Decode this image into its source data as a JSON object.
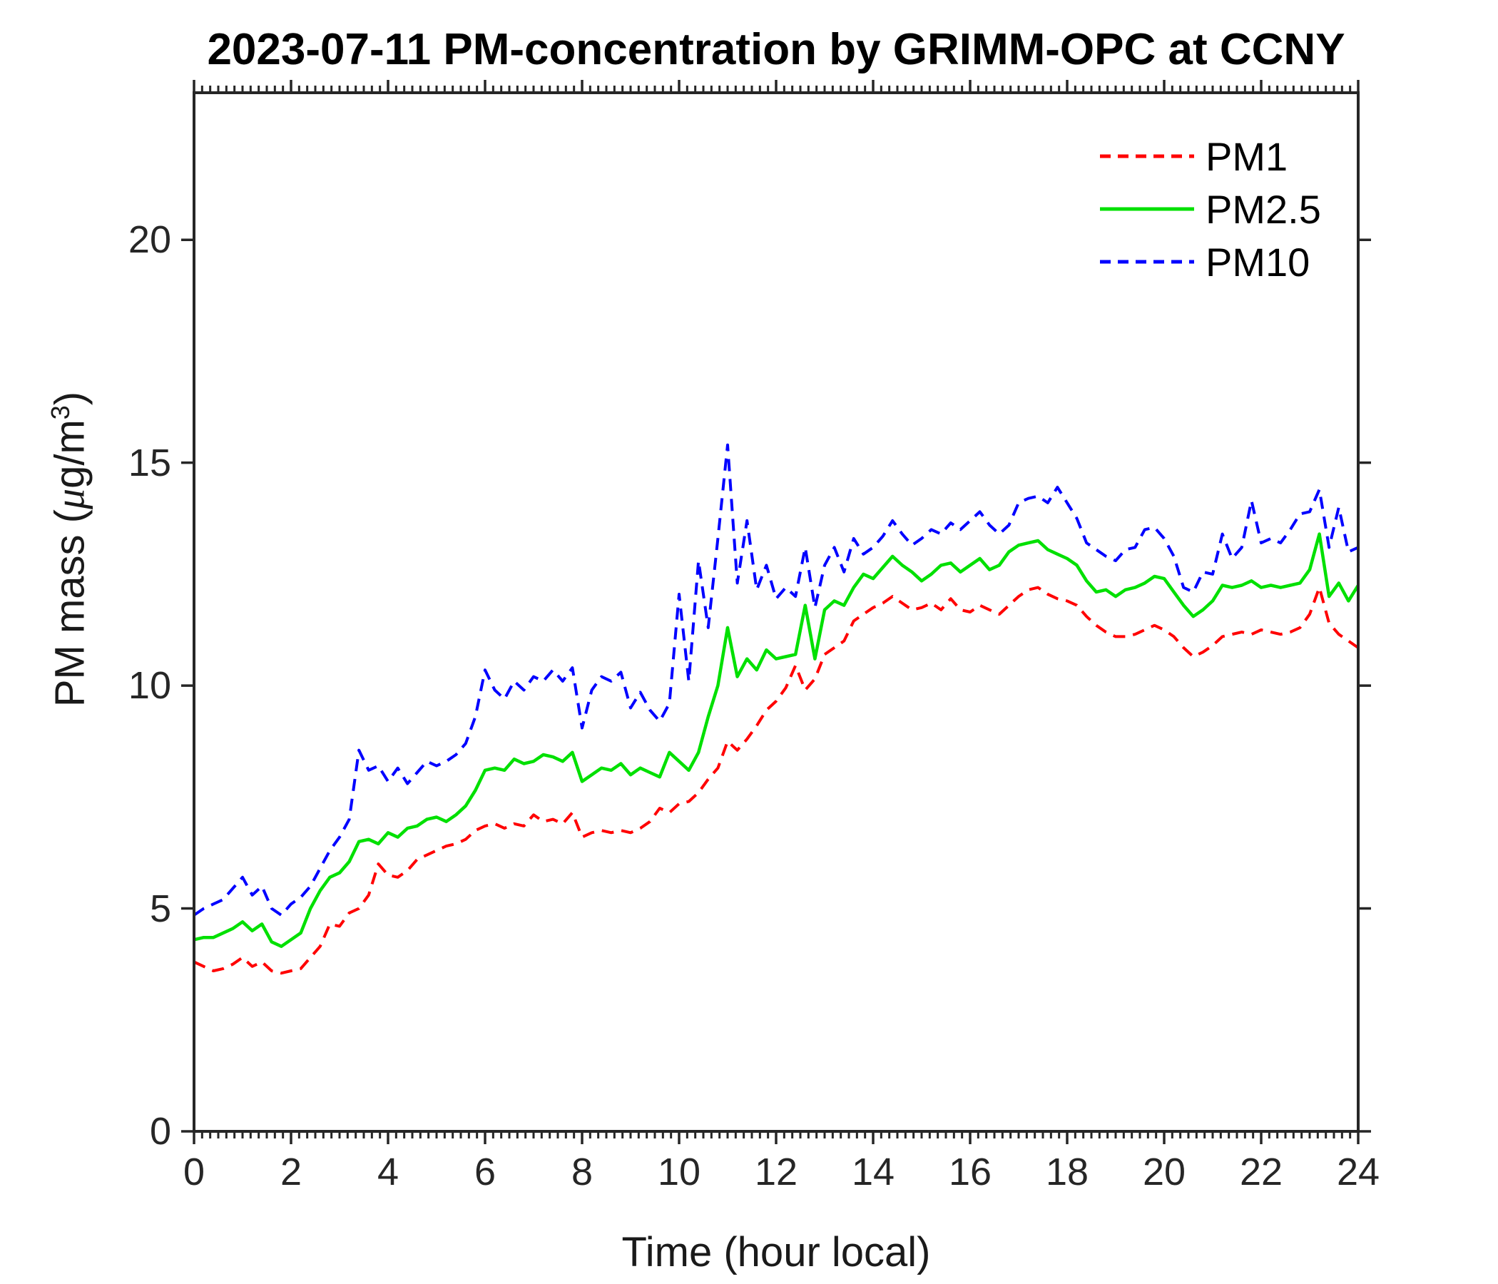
{
  "figure": {
    "background": "#ffffff",
    "axis_color": "#262626",
    "text_color": "#000000"
  },
  "chart_data": {
    "type": "line",
    "title": "2023-07-11 PM-concentration by GRIMM-OPC at CCNY",
    "xlabel": "Time (hour local)",
    "ylabel": "PM mass (μg/m³)",
    "ylabel_parts": {
      "prefix": "PM mass (",
      "mu": "μ",
      "unit": "g/m",
      "exponent": "3",
      "suffix": ")"
    },
    "xlim": [
      0,
      24
    ],
    "ylim": [
      0,
      23.3
    ],
    "xticks": [
      0,
      2,
      4,
      6,
      8,
      10,
      12,
      14,
      16,
      18,
      20,
      22,
      24
    ],
    "yticks": [
      0,
      5,
      10,
      15,
      20
    ],
    "x_minor_ticks_per_major": 12,
    "grid": false,
    "tick_direction": "out",
    "legend_position": "top-right-inside",
    "x_hours": [
      0,
      0.2,
      0.4,
      0.6,
      0.8,
      1,
      1.2,
      1.4,
      1.6,
      1.8,
      2,
      2.2,
      2.4,
      2.6,
      2.8,
      3,
      3.2,
      3.4,
      3.6,
      3.8,
      4,
      4.2,
      4.4,
      4.6,
      4.8,
      5,
      5.2,
      5.4,
      5.6,
      5.8,
      6,
      6.2,
      6.4,
      6.6,
      6.8,
      7,
      7.2,
      7.4,
      7.6,
      7.8,
      8,
      8.2,
      8.4,
      8.6,
      8.8,
      9,
      9.2,
      9.4,
      9.6,
      9.8,
      10,
      10.2,
      10.4,
      10.6,
      10.8,
      11,
      11.2,
      11.4,
      11.6,
      11.8,
      12,
      12.2,
      12.4,
      12.6,
      12.8,
      13,
      13.2,
      13.4,
      13.6,
      13.8,
      14,
      14.2,
      14.4,
      14.6,
      14.8,
      15,
      15.2,
      15.4,
      15.6,
      15.8,
      16,
      16.2,
      16.4,
      16.6,
      16.8,
      17,
      17.2,
      17.4,
      17.6,
      17.8,
      18,
      18.2,
      18.4,
      18.6,
      18.8,
      19,
      19.2,
      19.4,
      19.6,
      19.8,
      20,
      20.2,
      20.4,
      20.6,
      20.8,
      21,
      21.2,
      21.4,
      21.6,
      21.8,
      22,
      22.2,
      22.4,
      22.6,
      22.8,
      23,
      23.2,
      23.4,
      23.6,
      23.8,
      24
    ],
    "series": [
      {
        "name": "PM1",
        "color": "#ff0000",
        "line_style": "dashed",
        "values": [
          3.8,
          3.7,
          3.6,
          3.65,
          3.75,
          3.9,
          3.7,
          3.8,
          3.6,
          3.55,
          3.6,
          3.65,
          3.9,
          4.15,
          4.65,
          4.6,
          4.9,
          5.0,
          5.3,
          6.0,
          5.75,
          5.7,
          5.85,
          6.1,
          6.2,
          6.3,
          6.4,
          6.45,
          6.55,
          6.75,
          6.85,
          6.9,
          6.8,
          6.9,
          6.85,
          7.1,
          6.95,
          7.0,
          6.9,
          7.15,
          6.6,
          6.7,
          6.75,
          6.7,
          6.75,
          6.7,
          6.8,
          6.95,
          7.25,
          7.15,
          7.35,
          7.4,
          7.6,
          7.9,
          8.15,
          8.75,
          8.55,
          8.8,
          9.1,
          9.45,
          9.65,
          9.95,
          10.45,
          9.9,
          10.15,
          10.7,
          10.85,
          11.0,
          11.45,
          11.6,
          11.75,
          11.85,
          12.0,
          11.85,
          11.7,
          11.75,
          11.85,
          11.7,
          11.95,
          11.7,
          11.65,
          11.8,
          11.7,
          11.6,
          11.8,
          12.0,
          12.15,
          12.2,
          12.05,
          11.95,
          11.9,
          11.8,
          11.55,
          11.35,
          11.2,
          11.1,
          11.1,
          11.15,
          11.25,
          11.35,
          11.25,
          11.1,
          10.85,
          10.65,
          10.75,
          10.9,
          11.1,
          11.15,
          11.2,
          11.15,
          11.25,
          11.2,
          11.15,
          11.2,
          11.3,
          11.6,
          12.2,
          11.4,
          11.15,
          11.0,
          10.85
        ]
      },
      {
        "name": "PM2.5",
        "color": "#00e000",
        "line_style": "solid",
        "values": [
          4.3,
          4.35,
          4.35,
          4.45,
          4.55,
          4.7,
          4.5,
          4.65,
          4.25,
          4.15,
          4.3,
          4.45,
          5.0,
          5.4,
          5.7,
          5.8,
          6.05,
          6.5,
          6.55,
          6.45,
          6.7,
          6.6,
          6.8,
          6.85,
          7.0,
          7.05,
          6.95,
          7.1,
          7.3,
          7.65,
          8.1,
          8.15,
          8.1,
          8.35,
          8.25,
          8.3,
          8.45,
          8.4,
          8.3,
          8.5,
          7.85,
          8.0,
          8.15,
          8.1,
          8.25,
          8.0,
          8.15,
          8.05,
          7.95,
          8.5,
          8.3,
          8.1,
          8.5,
          9.3,
          10.0,
          11.3,
          10.2,
          10.6,
          10.35,
          10.8,
          10.6,
          10.65,
          10.7,
          11.8,
          10.6,
          11.7,
          11.9,
          11.8,
          12.2,
          12.5,
          12.4,
          12.65,
          12.9,
          12.7,
          12.55,
          12.35,
          12.5,
          12.7,
          12.75,
          12.55,
          12.7,
          12.85,
          12.6,
          12.7,
          13.0,
          13.15,
          13.2,
          13.25,
          13.05,
          12.95,
          12.85,
          12.7,
          12.35,
          12.1,
          12.15,
          12.0,
          12.15,
          12.2,
          12.3,
          12.45,
          12.4,
          12.1,
          11.8,
          11.55,
          11.7,
          11.9,
          12.25,
          12.2,
          12.25,
          12.35,
          12.2,
          12.25,
          12.2,
          12.25,
          12.3,
          12.6,
          13.4,
          12.0,
          12.3,
          11.9,
          12.25
        ]
      },
      {
        "name": "PM10",
        "color": "#0000ff",
        "line_style": "dashed",
        "values": [
          4.85,
          5.0,
          5.1,
          5.2,
          5.45,
          5.7,
          5.3,
          5.5,
          5.0,
          4.85,
          5.1,
          5.25,
          5.5,
          5.9,
          6.3,
          6.6,
          7.0,
          8.55,
          8.1,
          8.2,
          7.85,
          8.15,
          7.8,
          8.05,
          8.3,
          8.2,
          8.3,
          8.45,
          8.7,
          9.3,
          10.35,
          9.9,
          9.7,
          10.1,
          9.9,
          10.2,
          10.1,
          10.35,
          10.1,
          10.4,
          9.05,
          9.9,
          10.2,
          10.1,
          10.3,
          9.5,
          9.85,
          9.45,
          9.2,
          9.6,
          12.05,
          10.1,
          12.8,
          11.3,
          13.3,
          15.4,
          12.3,
          13.7,
          12.15,
          12.7,
          11.95,
          12.2,
          12.0,
          13.1,
          11.75,
          12.7,
          13.1,
          12.55,
          13.3,
          12.95,
          13.1,
          13.35,
          13.7,
          13.4,
          13.15,
          13.3,
          13.5,
          13.4,
          13.65,
          13.5,
          13.7,
          13.9,
          13.6,
          13.4,
          13.6,
          14.1,
          14.2,
          14.25,
          14.1,
          14.45,
          14.1,
          13.75,
          13.2,
          13.05,
          12.9,
          12.8,
          13.05,
          13.1,
          13.5,
          13.55,
          13.3,
          12.9,
          12.2,
          12.1,
          12.55,
          12.5,
          13.4,
          12.85,
          13.1,
          14.15,
          13.2,
          13.3,
          13.2,
          13.5,
          13.85,
          13.9,
          14.4,
          13.1,
          14.0,
          13.0,
          13.1
        ]
      }
    ]
  }
}
